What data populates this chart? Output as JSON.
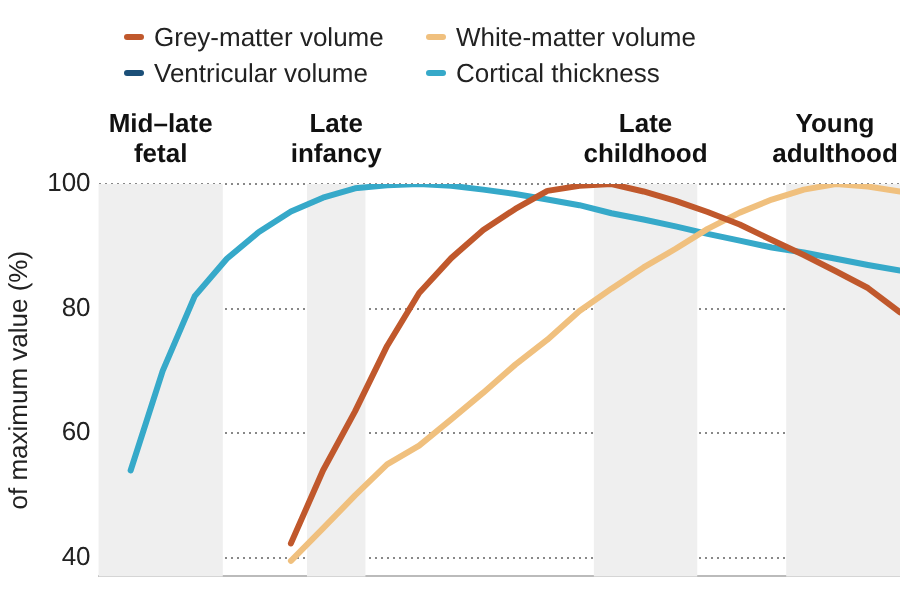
{
  "chart_data": {
    "type": "line",
    "ylabel": "of maximum value (%)",
    "ylim": [
      37,
      100
    ],
    "yticks": [
      40,
      60,
      80,
      100
    ],
    "tick_labels": "y",
    "grid": "y",
    "legend": "top left",
    "marker": "none",
    "line_style": "solid",
    "categories": [
      null,
      null,
      null,
      null,
      null,
      null,
      null,
      null,
      null,
      null,
      null,
      null,
      null,
      null,
      null,
      null,
      null,
      null,
      null,
      null,
      null,
      null,
      null,
      null,
      null,
      null
    ],
    "series": [
      {
        "name": "Grey-matter volume",
        "color": "#c0582c",
        "values": [
          null,
          null,
          null,
          null,
          null,
          null,
          42.3,
          54,
          63.5,
          74,
          82.5,
          88.1,
          92.6,
          96,
          98.9,
          99.7,
          100,
          98.8,
          97.3,
          95.5,
          93.5,
          91,
          88.6,
          86,
          83.3,
          79.4
        ]
      },
      {
        "name": "White-matter volume",
        "color": "#f0c07e",
        "values": [
          null,
          null,
          null,
          null,
          null,
          null,
          39.5,
          44.7,
          50,
          55,
          58,
          62.2,
          66.5,
          71,
          75,
          79.6,
          83.2,
          86.6,
          89.6,
          92.8,
          95.4,
          97.5,
          99.1,
          100,
          99.6,
          98.8
        ]
      },
      {
        "name": "Ventricular volume",
        "color": "#1b4f78",
        "values": [
          null,
          null,
          null,
          null,
          null,
          null,
          null,
          null,
          null,
          null,
          null,
          null,
          null,
          null,
          null,
          null,
          null,
          null,
          null,
          null,
          null,
          null,
          null,
          null,
          null,
          null
        ]
      },
      {
        "name": "Cortical thickness",
        "color": "#36a9c9",
        "values": [
          null,
          54,
          70,
          82,
          88,
          92.3,
          95.6,
          97.8,
          99.3,
          99.8,
          100,
          99.7,
          99.1,
          98.4,
          97.5,
          96.6,
          95.3,
          94.3,
          93.2,
          92,
          90.9,
          89.8,
          89,
          88,
          87,
          86.1
        ]
      }
    ],
    "annotations": [
      "Mid–late fetal",
      "Late infancy",
      "Late childhood",
      "Young adulthood"
    ]
  }
}
